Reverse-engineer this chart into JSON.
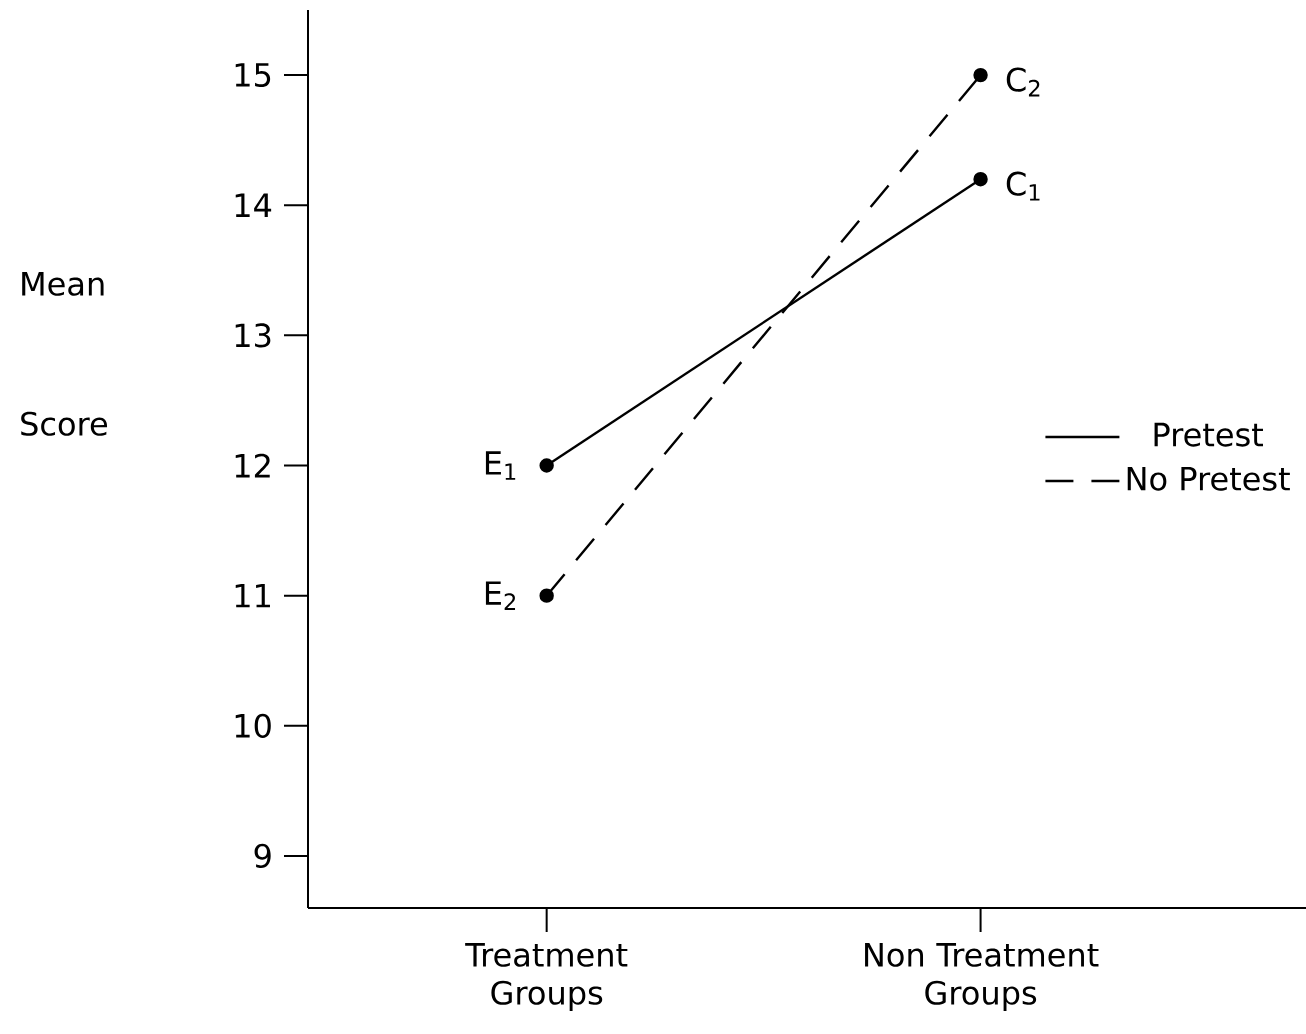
{
  "chart_data": {
    "type": "line",
    "ylabel": "Mean Score",
    "categories": [
      "Treatment Groups",
      "Non Treatment Groups"
    ],
    "series": [
      {
        "name": "Pretest",
        "color": "#000000",
        "values": [
          12,
          14.2
        ],
        "line_style": "solid"
      },
      {
        "name": "No Pretest",
        "color": "#000000",
        "values": [
          11,
          15
        ],
        "line_style": "dashed"
      }
    ],
    "ylim": [
      8.6,
      15.5
    ],
    "yticks": [
      9,
      10,
      11,
      12,
      13,
      14,
      15
    ],
    "marker": "circle",
    "legend": "right",
    "grid": false,
    "annotations": [
      {
        "text": "E$_{1}$",
        "x": "Treatment Groups",
        "y": 12
      },
      {
        "text": "E$_{2}$",
        "x": "Treatment Groups",
        "y": 11
      },
      {
        "text": "C$_{1}$",
        "x": "Non Treatment Groups",
        "y": 14.2
      },
      {
        "text": "C$_{2}$",
        "x": "Non Treatment Groups",
        "y": 15
      }
    ]
  }
}
